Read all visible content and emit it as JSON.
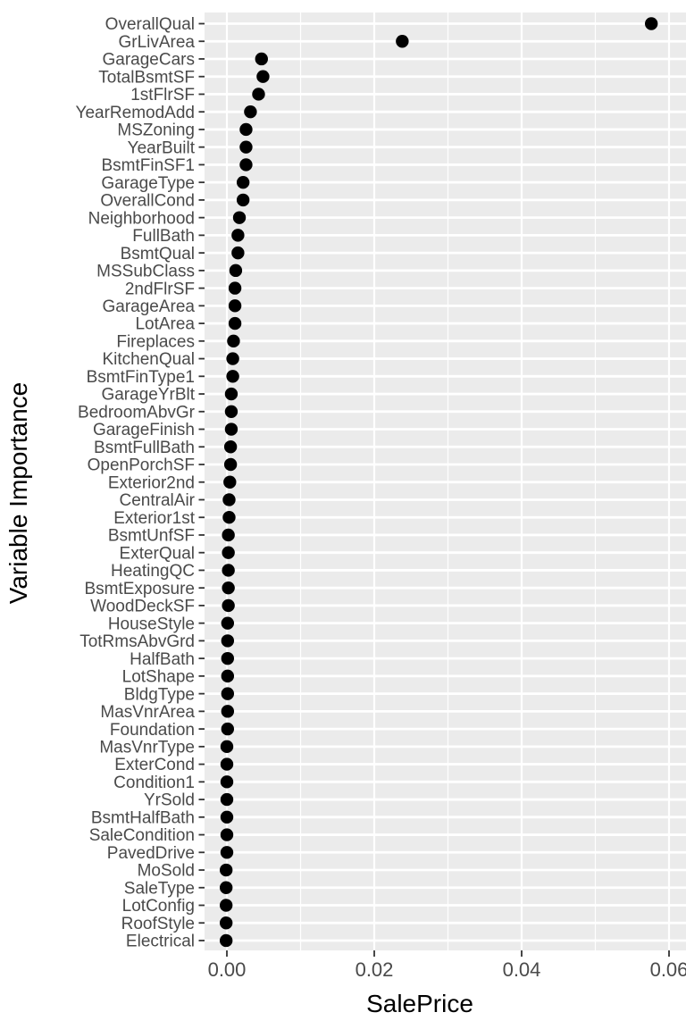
{
  "chart_data": {
    "type": "scatter",
    "variant": "cleveland-dot-plot",
    "title": "",
    "xlabel": "SalePrice",
    "ylabel": "Variable Importance",
    "x_ticks": [
      0.0,
      0.02,
      0.04,
      0.06
    ],
    "x_tick_labels": [
      "0.00",
      "0.02",
      "0.04",
      "0.06"
    ],
    "x_minor_ticks": [
      0.01,
      0.03,
      0.05
    ],
    "xlim": [
      -0.003,
      0.0623
    ],
    "grid": "on",
    "legend": "none",
    "categories": [
      "OverallQual",
      "GrLivArea",
      "GarageCars",
      "TotalBsmtSF",
      "1stFlrSF",
      "YearRemodAdd",
      "MSZoning",
      "YearBuilt",
      "BsmtFinSF1",
      "GarageType",
      "OverallCond",
      "Neighborhood",
      "FullBath",
      "BsmtQual",
      "MSSubClass",
      "2ndFlrSF",
      "GarageArea",
      "LotArea",
      "Fireplaces",
      "KitchenQual",
      "BsmtFinType1",
      "GarageYrBlt",
      "BedroomAbvGr",
      "GarageFinish",
      "BsmtFullBath",
      "OpenPorchSF",
      "Exterior2nd",
      "CentralAir",
      "Exterior1st",
      "BsmtUnfSF",
      "ExterQual",
      "HeatingQC",
      "BsmtExposure",
      "WoodDeckSF",
      "HouseStyle",
      "TotRmsAbvGrd",
      "HalfBath",
      "LotShape",
      "BldgType",
      "MasVnrArea",
      "Foundation",
      "MasVnrType",
      "ExterCond",
      "Condition1",
      "YrSold",
      "BsmtHalfBath",
      "SaleCondition",
      "PavedDrive",
      "MoSold",
      "SaleType",
      "LotConfig",
      "RoofStyle",
      "Electrical"
    ],
    "values": [
      0.0576,
      0.0238,
      0.0047,
      0.0049,
      0.0043,
      0.0032,
      0.0026,
      0.0026,
      0.0026,
      0.0022,
      0.0022,
      0.0017,
      0.0015,
      0.0015,
      0.0012,
      0.0011,
      0.0011,
      0.0011,
      0.0009,
      0.0008,
      0.0008,
      0.0006,
      0.0006,
      0.0006,
      0.0005,
      0.0005,
      0.0004,
      0.0003,
      0.0003,
      0.0002,
      0.0002,
      0.0002,
      0.0002,
      0.0002,
      0.0001,
      0.0001,
      0.0001,
      0.0001,
      0.0001,
      0.0001,
      0.0001,
      0.0,
      0.0,
      0.0,
      0.0,
      0.0,
      0.0,
      0.0,
      -0.0001,
      -0.0001,
      -0.0001,
      -0.0001,
      -0.0001
    ],
    "colors": {
      "panel_bg": "#EBEBEB",
      "grid": "#FFFFFF",
      "point": "#000000",
      "tick_mark": "#333333",
      "tick_label": "#4A4A4A",
      "axis_title": "#000000",
      "page_bg": "#FFFFFF"
    }
  }
}
